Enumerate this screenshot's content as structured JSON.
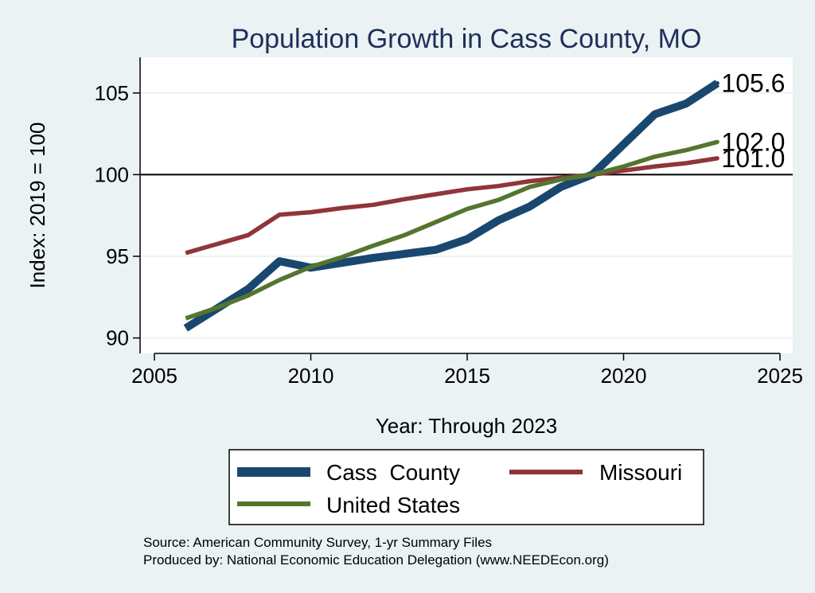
{
  "chart_data": {
    "type": "line",
    "title": "Population Growth in Cass County, MO",
    "xlabel": "Year: Through 2023",
    "ylabel": "Index: 2019 = 100",
    "xlim": [
      2005,
      2025
    ],
    "ylim": [
      89.2,
      106.5
    ],
    "xticks": [
      2005,
      2010,
      2015,
      2020,
      2025
    ],
    "yticks": [
      90,
      95,
      100,
      105
    ],
    "reference_line": 100,
    "grid": true,
    "legend_position": "bottom",
    "series": [
      {
        "name": "Cass  County",
        "color": "#1a476f",
        "width": "thick",
        "x": [
          2006,
          2007,
          2008,
          2009,
          2010,
          2011,
          2012,
          2013,
          2014,
          2015,
          2016,
          2017,
          2018,
          2019,
          2020,
          2021,
          2022,
          2023
        ],
        "y": [
          90.6,
          91.8,
          93.0,
          94.7,
          94.3,
          94.6,
          94.9,
          95.15,
          95.4,
          96.05,
          97.2,
          98.05,
          99.25,
          100.0,
          101.85,
          103.7,
          104.35,
          105.6
        ],
        "end_label": "105.6"
      },
      {
        "name": "Missouri",
        "color": "#90353b",
        "width": "medium",
        "x": [
          2006,
          2007,
          2008,
          2009,
          2010,
          2011,
          2012,
          2013,
          2014,
          2015,
          2016,
          2017,
          2018,
          2019,
          2020,
          2021,
          2022,
          2023
        ],
        "y": [
          95.2,
          95.75,
          96.3,
          97.55,
          97.7,
          97.95,
          98.15,
          98.5,
          98.8,
          99.1,
          99.3,
          99.6,
          99.8,
          100.0,
          100.25,
          100.5,
          100.7,
          101.0
        ],
        "end_label": "101.0"
      },
      {
        "name": "United States",
        "color": "#55752f",
        "width": "medium",
        "x": [
          2006,
          2007,
          2008,
          2009,
          2010,
          2011,
          2012,
          2013,
          2014,
          2015,
          2016,
          2017,
          2018,
          2019,
          2020,
          2021,
          2022,
          2023
        ],
        "y": [
          91.2,
          91.85,
          92.6,
          93.55,
          94.35,
          94.95,
          95.65,
          96.3,
          97.1,
          97.9,
          98.45,
          99.25,
          99.7,
          100.0,
          100.5,
          101.1,
          101.5,
          102.0
        ],
        "end_label": "102.0"
      }
    ],
    "legend": [
      "Cass  County",
      "Missouri",
      "United States"
    ],
    "annotations": [
      "Source: American Community Survey, 1-yr Summary Files",
      "Produced by: National Economic Education Delegation (www.NEEDEcon.org)"
    ]
  }
}
